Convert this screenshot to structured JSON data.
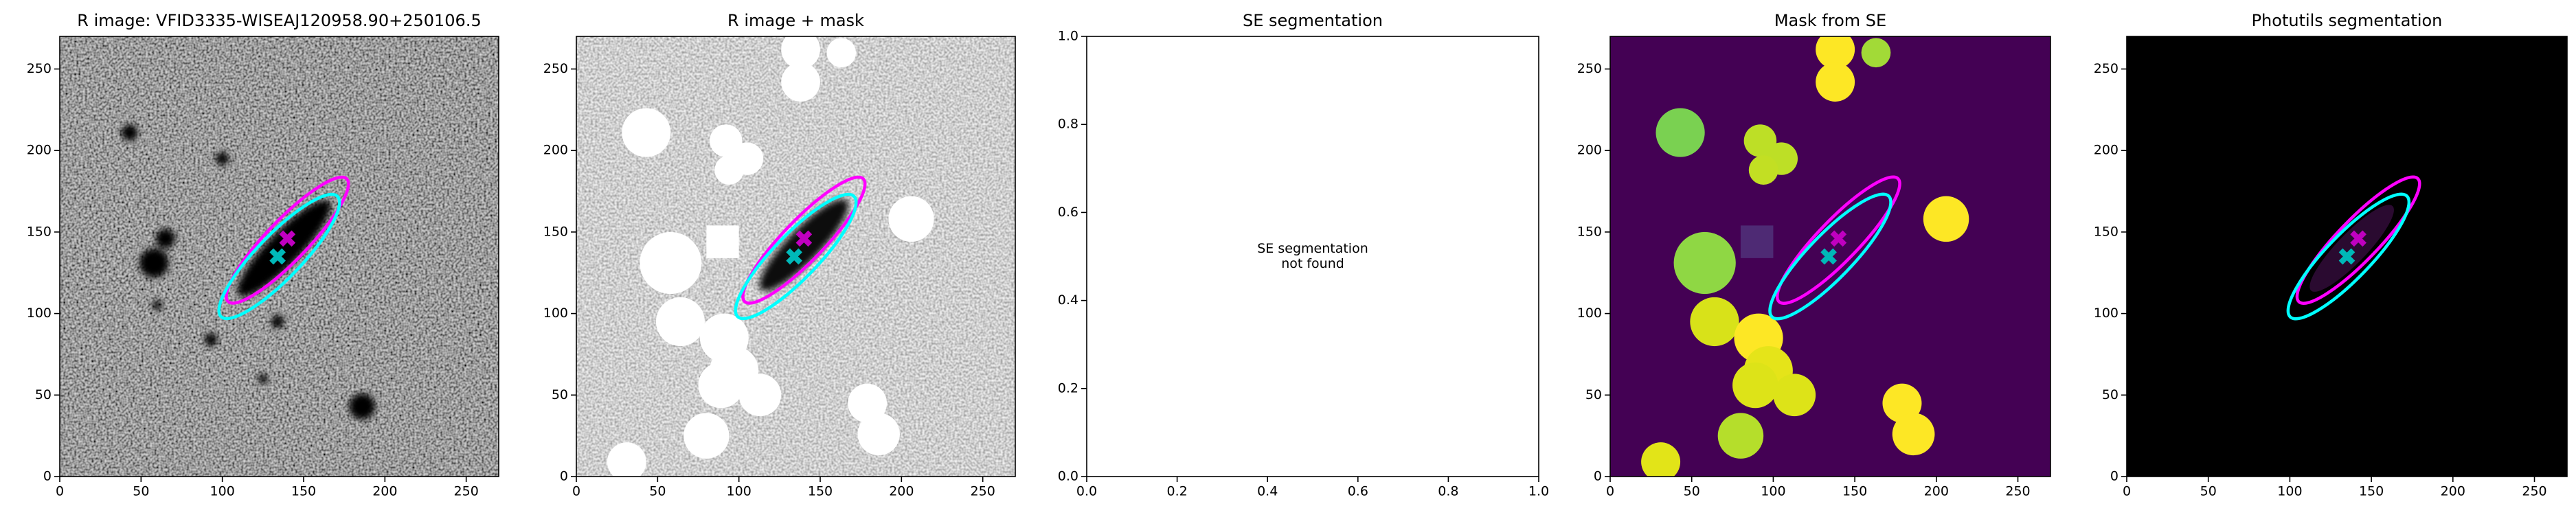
{
  "chart_data": [
    {
      "type": "image",
      "title": "R image: VFID3335-WISEAJ120958.90+250106.5",
      "xlim": [
        0,
        270
      ],
      "ylim": [
        0,
        270
      ],
      "xticks": [
        0,
        50,
        100,
        150,
        200,
        250
      ],
      "yticks": [
        0,
        50,
        100,
        150,
        200,
        250
      ],
      "ellipses": [
        {
          "color": "#ff00ff",
          "x": 140,
          "y": 145,
          "width": 105,
          "height": 25,
          "angle": 46
        },
        {
          "color": "#00ffff",
          "x": 135,
          "y": 135,
          "width": 103,
          "height": 27,
          "angle": 46
        }
      ],
      "markers": [
        {
          "color": "#c000c0",
          "x": 140,
          "y": 146
        },
        {
          "color": "#00b8b8",
          "x": 134,
          "y": 135
        }
      ]
    },
    {
      "type": "image",
      "title": "R image + mask",
      "xlim": [
        0,
        270
      ],
      "ylim": [
        0,
        270
      ],
      "xticks": [
        0,
        50,
        100,
        150,
        200,
        250
      ],
      "yticks": [
        0,
        50,
        100,
        150,
        200,
        250
      ],
      "ellipses": [
        {
          "color": "#ff00ff",
          "x": 140,
          "y": 145,
          "width": 105,
          "height": 25,
          "angle": 46
        },
        {
          "color": "#00ffff",
          "x": 135,
          "y": 135,
          "width": 103,
          "height": 27,
          "angle": 46
        }
      ],
      "markers": [
        {
          "color": "#c000c0",
          "x": 140,
          "y": 146
        },
        {
          "color": "#00b8b8",
          "x": 134,
          "y": 135
        }
      ]
    },
    {
      "type": "empty",
      "title": "SE segmentation",
      "annotation": [
        "SE segmentation",
        "not found"
      ],
      "xlim": [
        0,
        1
      ],
      "ylim": [
        0,
        1
      ],
      "xticks": [
        {
          "value": 0,
          "label": "0.0"
        },
        0.2,
        0.4,
        0.6,
        0.8,
        {
          "value": 1,
          "label": "1.0"
        }
      ],
      "yticks": [
        {
          "value": 0,
          "label": "0.0"
        },
        0.2,
        0.4,
        0.6,
        0.8,
        {
          "value": 1,
          "label": "1.0"
        }
      ]
    },
    {
      "type": "image",
      "title": "Mask from SE",
      "xlim": [
        0,
        270
      ],
      "ylim": [
        0,
        270
      ],
      "xticks": [
        0,
        50,
        100,
        150,
        200,
        250
      ],
      "yticks": [
        0,
        50,
        100,
        150,
        200,
        250
      ],
      "ellipses": [
        {
          "color": "#ff00ff",
          "x": 140,
          "y": 145,
          "width": 105,
          "height": 25,
          "angle": 46
        },
        {
          "color": "#00ffff",
          "x": 135,
          "y": 135,
          "width": 103,
          "height": 27,
          "angle": 46
        }
      ],
      "markers": [
        {
          "color": "#c000c0",
          "x": 140,
          "y": 146
        },
        {
          "color": "#00b8b8",
          "x": 134,
          "y": 135
        }
      ]
    },
    {
      "type": "image",
      "title": "Photutils segmentation",
      "xlim": [
        0,
        270
      ],
      "ylim": [
        0,
        270
      ],
      "xticks": [
        0,
        50,
        100,
        150,
        200,
        250
      ],
      "yticks": [
        0,
        50,
        100,
        150,
        200,
        250
      ],
      "ellipses": [
        {
          "color": "#ff00ff",
          "x": 142,
          "y": 145,
          "width": 105,
          "height": 25,
          "angle": 46
        },
        {
          "color": "#00ffff",
          "x": 136,
          "y": 135,
          "width": 103,
          "height": 27,
          "angle": 46
        }
      ],
      "markers": [
        {
          "color": "#c000c0",
          "x": 142,
          "y": 146
        },
        {
          "color": "#00b8b8",
          "x": 135,
          "y": 135
        }
      ]
    }
  ]
}
